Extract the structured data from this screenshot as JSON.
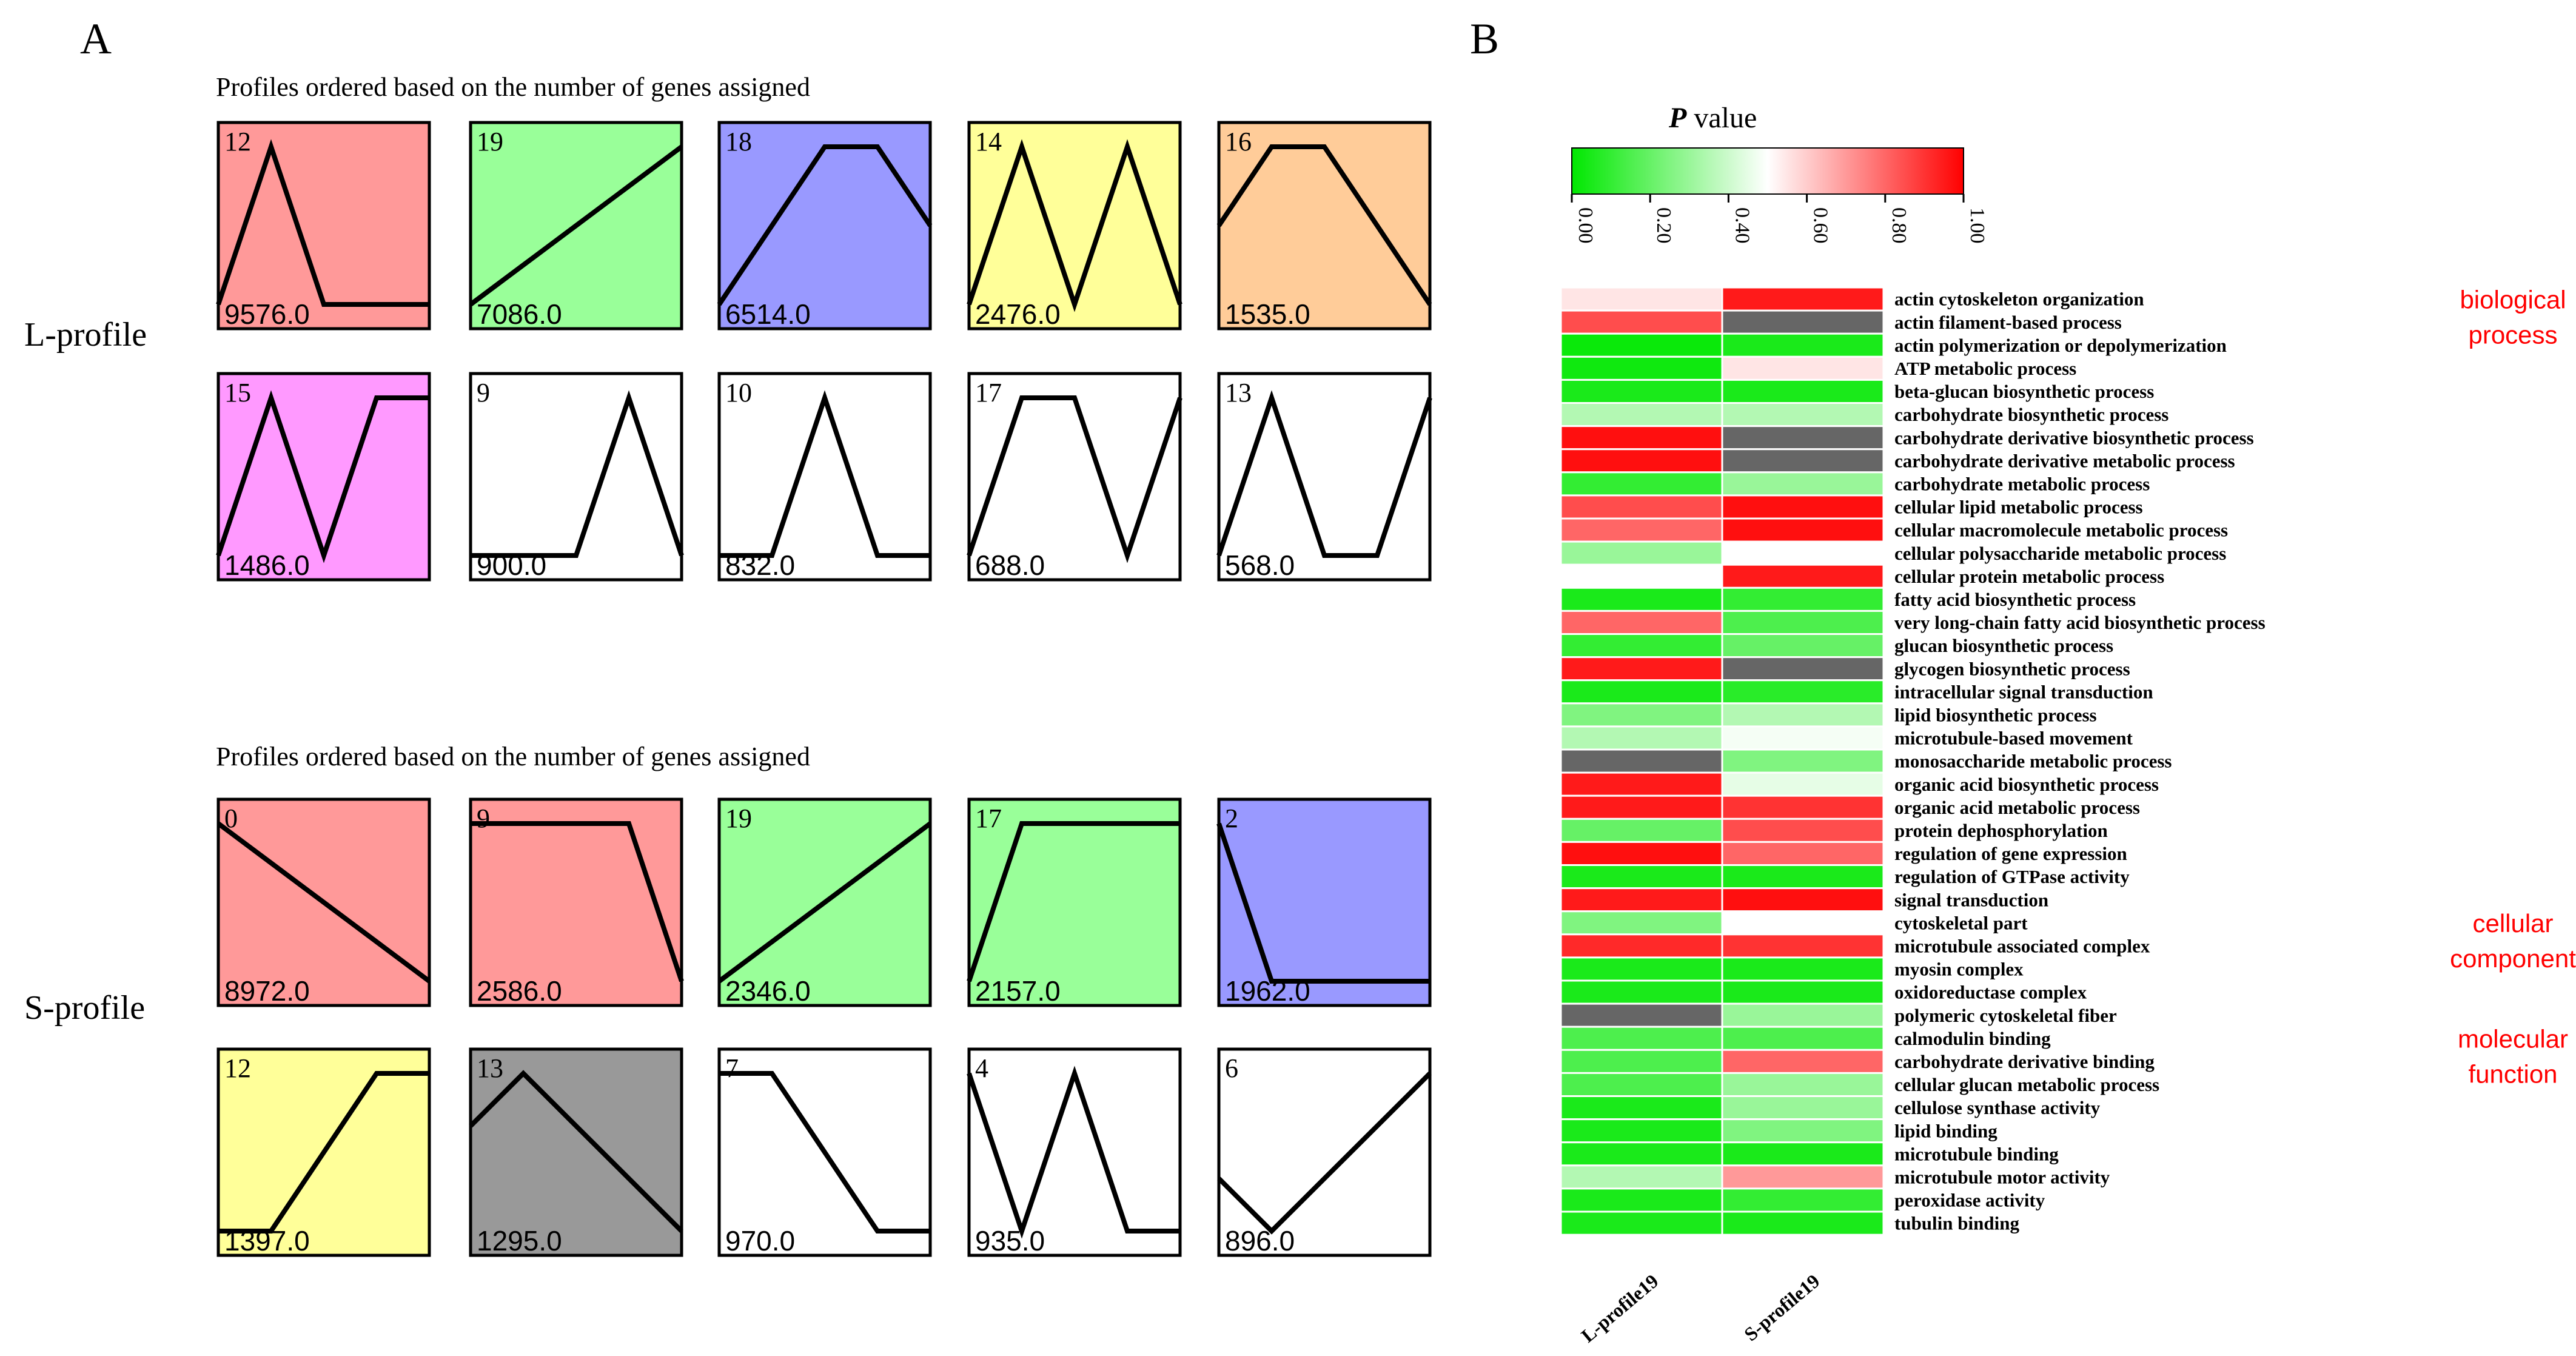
{
  "panel_a_label": "A",
  "panel_b_label": "B",
  "profile_groups": [
    {
      "name": "L-profile",
      "title": "Profiles ordered based on the number of genes assigned",
      "profiles": [
        {
          "id": "12",
          "count": "9576.0",
          "color": "#FF9999",
          "pattern": [
            1,
            2,
            1,
            1,
            1
          ]
        },
        {
          "id": "19",
          "count": "7086.0",
          "color": "#99FF99",
          "pattern": [
            0,
            1,
            2,
            3,
            4
          ]
        },
        {
          "id": "18",
          "count": "6514.0",
          "color": "#9999FF",
          "pattern": [
            0,
            1,
            2,
            2,
            1
          ]
        },
        {
          "id": "14",
          "count": "2476.0",
          "color": "#FFFF99",
          "pattern": [
            1,
            2,
            1,
            2,
            1
          ]
        },
        {
          "id": "16",
          "count": "1535.0",
          "color": "#FFCC99",
          "pattern": [
            2,
            3,
            3,
            2,
            1
          ]
        },
        {
          "id": "15",
          "count": "1486.0",
          "color": "#FF99FF",
          "pattern": [
            1,
            2,
            1,
            2,
            2
          ]
        },
        {
          "id": "9",
          "count": "900.0",
          "color": "#FFFFFF",
          "pattern": [
            1,
            1,
            1,
            2,
            1
          ]
        },
        {
          "id": "10",
          "count": "832.0",
          "color": "#FFFFFF",
          "pattern": [
            1,
            1,
            2,
            1,
            1
          ]
        },
        {
          "id": "17",
          "count": "688.0",
          "color": "#FFFFFF",
          "pattern": [
            1,
            2,
            2,
            1,
            2
          ]
        },
        {
          "id": "13",
          "count": "568.0",
          "color": "#FFFFFF",
          "pattern": [
            1,
            2,
            1,
            1,
            2
          ]
        }
      ]
    },
    {
      "name": "S-profile",
      "title": "Profiles ordered based on the number of genes assigned",
      "profiles": [
        {
          "id": "0",
          "count": "8972.0",
          "color": "#FF9999",
          "pattern": [
            4,
            3,
            2,
            1,
            0
          ]
        },
        {
          "id": "9",
          "count": "2586.0",
          "color": "#FF9999",
          "pattern": [
            2,
            2,
            2,
            2,
            1
          ]
        },
        {
          "id": "19",
          "count": "2346.0",
          "color": "#99FF99",
          "pattern": [
            0,
            1,
            2,
            3,
            4
          ]
        },
        {
          "id": "17",
          "count": "2157.0",
          "color": "#99FF99",
          "pattern": [
            1,
            2,
            2,
            2,
            2
          ]
        },
        {
          "id": "2",
          "count": "1962.0",
          "color": "#9999FF",
          "pattern": [
            2,
            1,
            1,
            1,
            1
          ]
        },
        {
          "id": "12",
          "count": "1397.0",
          "color": "#FFFF99",
          "pattern": [
            1,
            1,
            2,
            3,
            3
          ]
        },
        {
          "id": "13",
          "count": "1295.0",
          "color": "#999999",
          "pattern": [
            1,
            2,
            1,
            0,
            -1
          ]
        },
        {
          "id": "7",
          "count": "970.0",
          "color": "#FFFFFF",
          "pattern": [
            1,
            1,
            0,
            -1,
            -1
          ]
        },
        {
          "id": "4",
          "count": "935.0",
          "color": "#FFFFFF",
          "pattern": [
            1,
            0,
            1,
            0,
            0
          ]
        },
        {
          "id": "6",
          "count": "896.0",
          "color": "#FFFFFF",
          "pattern": [
            1,
            0,
            1,
            2,
            3
          ]
        }
      ]
    }
  ],
  "chart_data": {
    "type": "heatmap",
    "title": "P value",
    "title_bold_part": "P",
    "title_rest": " value",
    "colorscale": {
      "low_color": "#00E800",
      "mid_color": "#FFFFFF",
      "high_color": "#FF0000",
      "range": [
        0,
        1
      ],
      "tick_labels": [
        "0.00",
        "0.20",
        "0.40",
        "0.60",
        "0.80",
        "1.00"
      ],
      "tick_values": [
        0,
        0.2,
        0.4,
        0.6,
        0.8,
        1.0
      ]
    },
    "missing_color": "#666666",
    "columns": [
      "L-profile19",
      "S-profile19"
    ],
    "rows": [
      "actin cytoskeleton organization",
      "actin filament-based process",
      "actin polymerization or depolymerization",
      "ATP metabolic process",
      "beta-glucan biosynthetic process",
      "carbohydrate biosynthetic process",
      "carbohydrate derivative biosynthetic process",
      "carbohydrate derivative metabolic process",
      "carbohydrate metabolic process",
      "cellular lipid metabolic process",
      "cellular macromolecule metabolic process",
      "cellular polysaccharide metabolic process",
      "cellular protein metabolic process",
      "fatty acid biosynthetic process",
      "very long-chain fatty acid biosynthetic process",
      "glucan biosynthetic process",
      "glycogen biosynthetic process",
      "intracellular signal transduction",
      "lipid biosynthetic process",
      "microtubule-based movement",
      "monosaccharide metabolic process",
      "organic acid biosynthetic process",
      "organic acid metabolic process",
      "protein dephosphorylation",
      "regulation of gene expression",
      "regulation of GTPase activity",
      "signal transduction",
      "cytoskeletal part",
      "microtubule associated complex",
      "myosin complex",
      "oxidoreductase complex",
      "polymeric cytoskeletal fiber",
      "calmodulin binding",
      "carbohydrate derivative binding",
      "cellular glucan metabolic process",
      "cellulose synthase activity",
      "lipid binding",
      "microtubule binding",
      "microtubule motor activity",
      "peroxidase activity",
      "tubulin binding"
    ],
    "values": [
      [
        0.55,
        0.95
      ],
      [
        0.85,
        null
      ],
      [
        0.02,
        0.05
      ],
      [
        0.03,
        0.55
      ],
      [
        0.05,
        0.05
      ],
      [
        0.35,
        0.35
      ],
      [
        0.97,
        null
      ],
      [
        0.97,
        null
      ],
      [
        0.1,
        0.3
      ],
      [
        0.85,
        0.97
      ],
      [
        0.8,
        0.97
      ],
      [
        0.3,
        0.5
      ],
      [
        0.5,
        0.95
      ],
      [
        0.05,
        0.1
      ],
      [
        0.8,
        0.15
      ],
      [
        0.1,
        0.2
      ],
      [
        0.95,
        null
      ],
      [
        0.05,
        0.08
      ],
      [
        0.25,
        0.35
      ],
      [
        0.35,
        0.48
      ],
      [
        null,
        0.25
      ],
      [
        0.95,
        0.45
      ],
      [
        0.95,
        0.9
      ],
      [
        0.2,
        0.85
      ],
      [
        0.97,
        0.8
      ],
      [
        0.05,
        0.05
      ],
      [
        0.95,
        0.97
      ],
      [
        0.25,
        0.5
      ],
      [
        0.92,
        0.9
      ],
      [
        0.05,
        0.05
      ],
      [
        0.05,
        0.05
      ],
      [
        null,
        0.3
      ],
      [
        0.15,
        0.15
      ],
      [
        0.15,
        0.8
      ],
      [
        0.15,
        0.3
      ],
      [
        0.05,
        0.3
      ],
      [
        0.05,
        0.25
      ],
      [
        0.05,
        0.05
      ],
      [
        0.35,
        0.7
      ],
      [
        0.05,
        0.1
      ],
      [
        0.05,
        0.05
      ]
    ],
    "categories": [
      {
        "label": "biological process",
        "row_start": 0
      },
      {
        "label": "cellular component",
        "row_start": 27
      },
      {
        "label": "molecular function",
        "row_start": 32
      }
    ],
    "category_label_color": "#FF0000"
  }
}
